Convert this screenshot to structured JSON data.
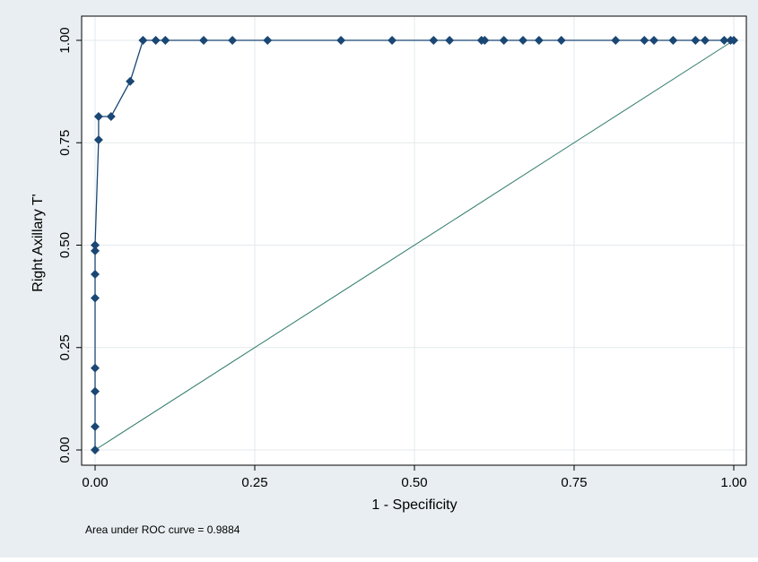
{
  "chart_data": {
    "type": "line",
    "title": "",
    "xlabel": "1 - Specificity",
    "ylabel": "Right Axillary T'",
    "xlim": [
      0,
      1
    ],
    "ylim": [
      0,
      1
    ],
    "x_ticks": [
      "0.00",
      "0.25",
      "0.50",
      "0.75",
      "1.00"
    ],
    "y_ticks": [
      "0.00",
      "0.25",
      "0.50",
      "0.75",
      "1.00"
    ],
    "grid": true,
    "annotation": "Area under ROC curve = 0.9884",
    "colors": {
      "background": "#e8eef1",
      "plot_area": "#ffffff",
      "grid": "#e3e9ec",
      "roc_series": "#1a4774",
      "reference_line": "#2e7a6b"
    },
    "series": [
      {
        "x": [
          0.0,
          0.0,
          0.0,
          0.0,
          0.0,
          0.0,
          0.0,
          0.0,
          0.0055,
          0.0055,
          0.025,
          0.055,
          0.075,
          0.095,
          0.11,
          0.17,
          0.215,
          0.27,
          0.385,
          0.465,
          0.53,
          0.555,
          0.605,
          0.61,
          0.64,
          0.67,
          0.695,
          0.73,
          0.815,
          0.86,
          0.875,
          0.905,
          0.94,
          0.955,
          0.985,
          0.995,
          1.0
        ],
        "y": [
          0.0,
          0.057,
          0.143,
          0.2,
          0.371,
          0.429,
          0.486,
          0.5,
          0.757,
          0.814,
          0.814,
          0.9,
          1.0,
          1.0,
          1.0,
          1.0,
          1.0,
          1.0,
          1.0,
          1.0,
          1.0,
          1.0,
          1.0,
          1.0,
          1.0,
          1.0,
          1.0,
          1.0,
          1.0,
          1.0,
          1.0,
          1.0,
          1.0,
          1.0,
          1.0,
          1.0,
          1.0
        ]
      },
      {
        "x": [
          0,
          1
        ],
        "y": [
          0,
          1
        ]
      }
    ]
  }
}
